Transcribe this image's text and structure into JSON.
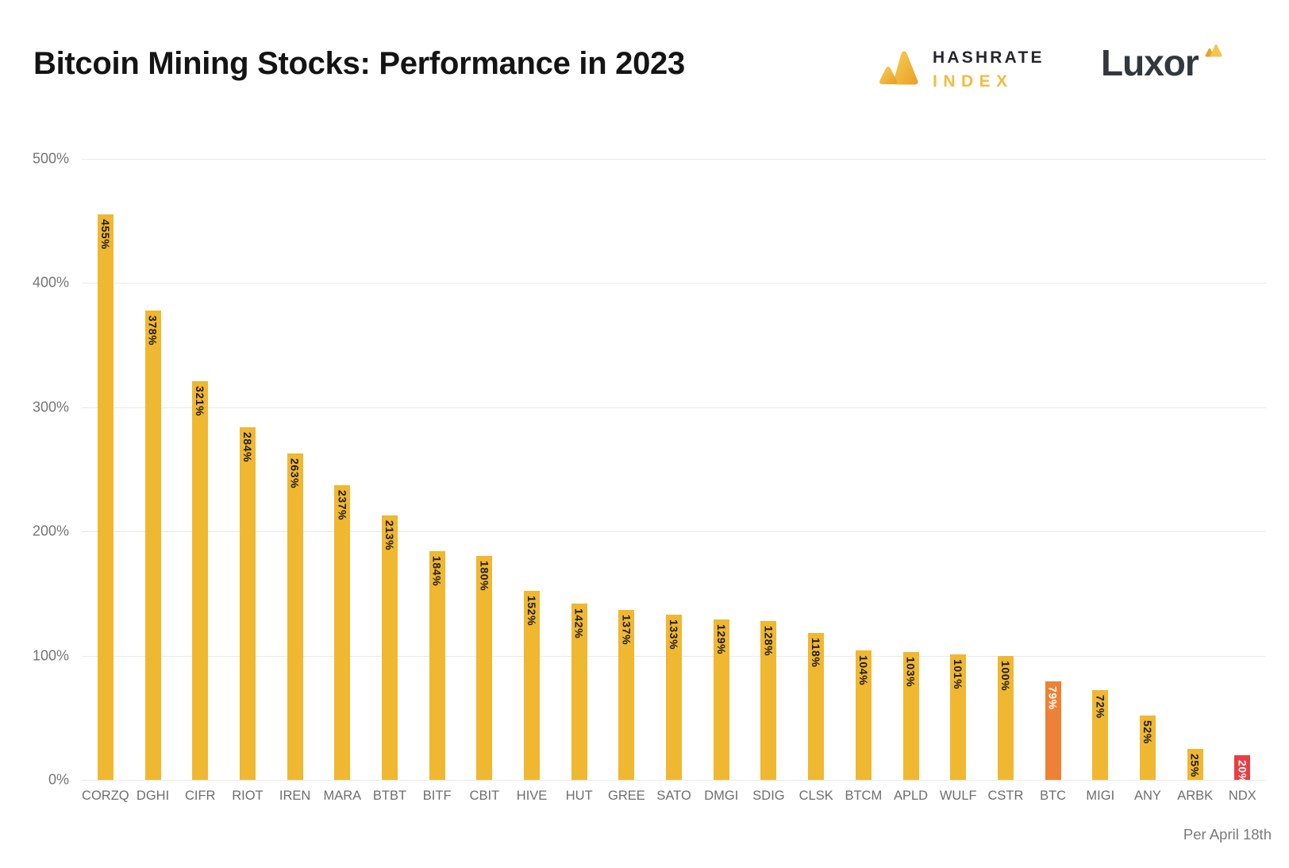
{
  "header": {
    "title": "Bitcoin Mining Stocks: Performance in 2023",
    "hashrate_index_logo": {
      "line1": "HASHRATE",
      "line2": "INDEX"
    },
    "luxor_logo_text": "Luxor"
  },
  "chart_data": {
    "type": "bar",
    "title": "Bitcoin Mining Stocks: Performance in 2023",
    "unit": "%",
    "categories": [
      "CORZQ",
      "DGHI",
      "CIFR",
      "RIOT",
      "IREN",
      "MARA",
      "BTBT",
      "BITF",
      "CBIT",
      "HIVE",
      "HUT",
      "GREE",
      "SATO",
      "DMGI",
      "SDIG",
      "CLSK",
      "BTCM",
      "APLD",
      "WULF",
      "CSTR",
      "BTC",
      "MIGI",
      "ANY",
      "ARBK",
      "NDX"
    ],
    "values": [
      455,
      378,
      321,
      284,
      263,
      237,
      213,
      184,
      180,
      152,
      142,
      137,
      133,
      129,
      128,
      118,
      104,
      103,
      101,
      100,
      79,
      72,
      52,
      25,
      20
    ],
    "bar_labels": [
      "455%",
      "378%",
      "321%",
      "284%",
      "263%",
      "237%",
      "213%",
      "184%",
      "180%",
      "152%",
      "142%",
      "137%",
      "133%",
      "129%",
      "128%",
      "118%",
      "104%",
      "103%",
      "101%",
      "100%",
      "79%",
      "72%",
      "52%",
      "25%",
      "20%"
    ],
    "ylim": [
      0,
      500
    ],
    "yticks": [
      500,
      400,
      300,
      200,
      100,
      0
    ],
    "ytick_suffix": "%",
    "grid": true,
    "legend": false,
    "highlights": {
      "BTC": "#ED8135",
      "NDX": "#E73E45"
    },
    "colors": {
      "bar_default": "#F0B731",
      "label_on_default": "#1C1C1C",
      "label_on_highlight": "#FFFFFF",
      "gridline": "#EAEAEA",
      "axis_text": "#6E6E6E"
    },
    "annotation": "Per April 18th"
  }
}
